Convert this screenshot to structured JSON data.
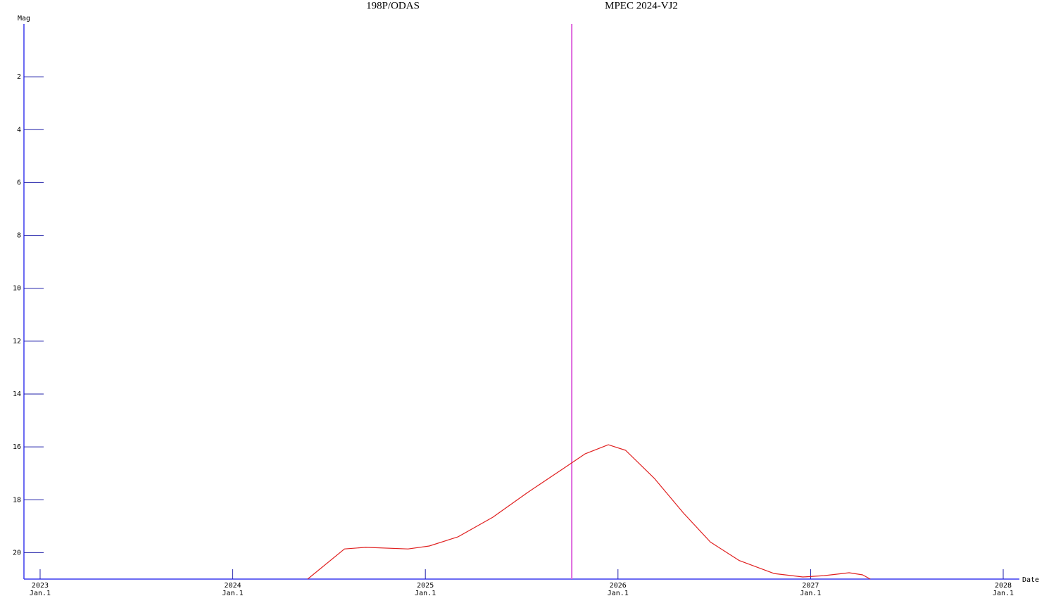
{
  "chart_data": {
    "type": "line",
    "titles": [
      "198P/ODAS",
      "MPEC 2024-VJ2"
    ],
    "y_label": "Mag",
    "x_label": "Date",
    "x": [
      2024.389,
      2024.58,
      2024.69,
      2024.91,
      2025.02,
      2025.17,
      2025.35,
      2025.53,
      2025.72,
      2025.83,
      2025.95,
      2026.04,
      2026.19,
      2026.34,
      2026.48,
      2026.63,
      2026.81,
      2026.96,
      2027.07,
      2027.2,
      2027.27,
      2027.31
    ],
    "series": [
      {
        "name": "198P/ODAS",
        "color": "#e02020",
        "values": [
          21,
          19.86,
          19.8,
          19.86,
          19.75,
          19.4,
          18.66,
          17.73,
          16.8,
          16.26,
          15.92,
          16.13,
          17.2,
          18.5,
          19.6,
          20.3,
          20.79,
          20.92,
          20.87,
          20.76,
          20.84,
          21
        ]
      }
    ],
    "marker_x": 2025.76,
    "marker_color": "#dd66dd",
    "xlim": [
      2022.916,
      2028.084
    ],
    "xticks": [
      2023,
      2024,
      2025,
      2026,
      2027,
      2028
    ],
    "xtick_sublabels": [
      "Jan.1",
      "Jan.1",
      "Jan.1",
      "Jan.1",
      "Jan.1",
      "Jan.1"
    ],
    "ylim": [
      21,
      0
    ],
    "yticks": [
      2,
      4,
      6,
      8,
      10,
      12,
      14,
      16,
      18,
      20
    ],
    "axis_color": "#3a3aee"
  }
}
